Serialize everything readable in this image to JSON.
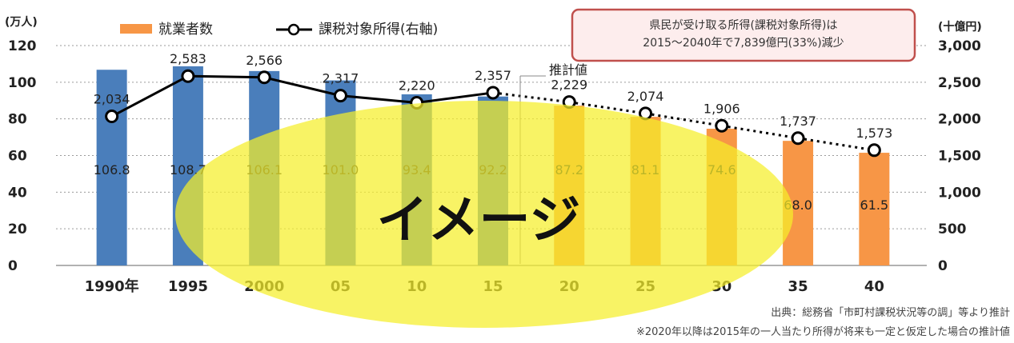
{
  "chart_data": {
    "type": "bar",
    "categories": [
      "1990年",
      "1995",
      "2000",
      "05",
      "10",
      "15",
      "20",
      "25",
      "30",
      "35",
      "40"
    ],
    "y_unit_left": "(万人)",
    "y_unit_right": "(十億円)",
    "ylim_left": [
      0,
      120
    ],
    "ylim_right": [
      0,
      3000
    ],
    "yticks_left": [
      "120",
      "100",
      "80",
      "60",
      "40",
      "20",
      "0"
    ],
    "yticks_right": [
      "3,000",
      "2,500",
      "2,000",
      "1,500",
      "1,000",
      "500",
      "0"
    ],
    "series": [
      {
        "name": "就業者数",
        "type": "bar",
        "axis": "left",
        "values": [
          106.8,
          108.7,
          106.1,
          101.0,
          93.4,
          92.2,
          87.2,
          81.1,
          74.6,
          68.0,
          61.5
        ],
        "labels": [
          "106.8",
          "108.7",
          "106.1",
          "101.0",
          "93.4",
          "92.2",
          "87.2",
          "81.1",
          "74.6",
          "68.0",
          "61.5"
        ],
        "color_actual": "#4A7EBB",
        "color_forecast": "#F79646"
      },
      {
        "name": "課税対象所得(右軸)",
        "type": "line",
        "axis": "right",
        "values": [
          2034,
          2583,
          2566,
          2317,
          2220,
          2357,
          2229,
          2074,
          1906,
          1737,
          1573
        ],
        "labels": [
          "2,034",
          "2,583",
          "2,566",
          "2,317",
          "2,220",
          "2,357",
          "2,229",
          "2,074",
          "1,906",
          "1,737",
          "1,573"
        ],
        "color": "#000000"
      }
    ],
    "forecast_label": "推計値",
    "callout": [
      "県民が受け取る所得(課税対象所得)は",
      "2015～2040年で7,839億円(33%)減少"
    ],
    "source_note": "出典：総務省「市町村課税状況等の調」等より推計",
    "footnote": "※2020年以降は2015年の一人当たり所得が将来も一定と仮定した場合の推計値",
    "overlay_text": "イメージ",
    "grid": "horizontal-dotted",
    "legend": "top-left"
  }
}
